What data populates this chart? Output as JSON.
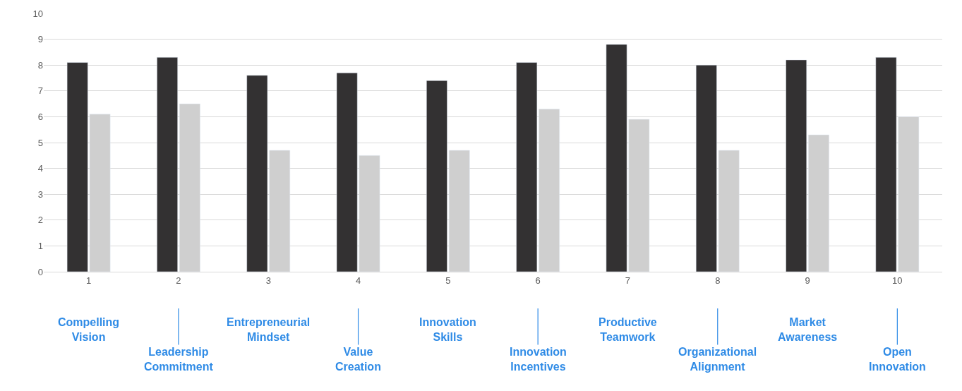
{
  "chart_data": {
    "type": "bar",
    "categories": [
      "1",
      "2",
      "3",
      "4",
      "5",
      "6",
      "7",
      "8",
      "9",
      "10"
    ],
    "series": [
      {
        "color": "#333132",
        "values": [
          8.1,
          8.3,
          7.6,
          7.7,
          7.4,
          8.1,
          8.8,
          8.0,
          8.2,
          8.3
        ]
      },
      {
        "color": "#cfcfcf",
        "values": [
          6.1,
          6.5,
          4.7,
          4.5,
          4.7,
          6.3,
          5.9,
          4.7,
          5.3,
          6.0
        ]
      }
    ],
    "ylim": [
      0,
      10
    ],
    "yticks": [
      0,
      1,
      2,
      3,
      4,
      5,
      6,
      7,
      8,
      9,
      10
    ],
    "grid": "y",
    "legend": false,
    "annotations": [
      "Compelling\nVision",
      "Leadership\nCommitment",
      "Entrepreneurial\nMindset",
      "Value\nCreation",
      "Innovation\nSkills",
      "Innovation\nIncentives",
      "Productive\nTeamwork",
      "Organizational\nAlignment",
      "Market\nAwareness",
      "Open\nInnovation"
    ]
  }
}
